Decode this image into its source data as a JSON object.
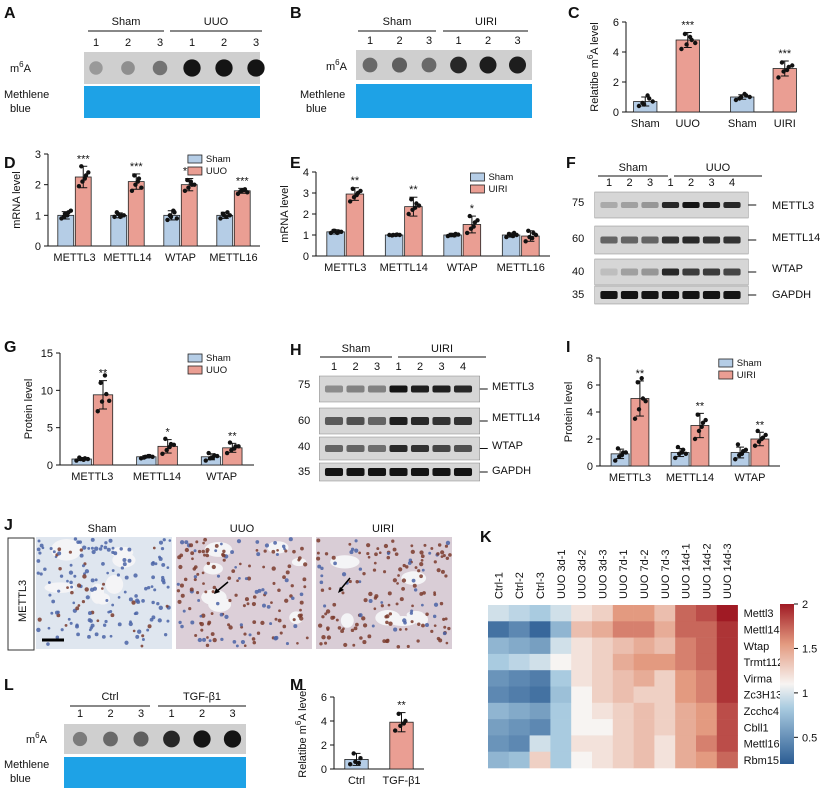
{
  "panels": {
    "A": {
      "label": "A",
      "group_labels": [
        "Sham",
        "UUO"
      ],
      "lane_numbers": [
        "1",
        "2",
        "3",
        "1",
        "2",
        "3"
      ],
      "row_label_m6a": "m",
      "row_label_m6a_sup": "6",
      "row_label_m6a_tail": "A",
      "row_label_mb": [
        "Methlene",
        "blue"
      ],
      "spot_intensity": [
        0.25,
        0.3,
        0.45,
        0.95,
        0.95,
        0.95
      ]
    },
    "B": {
      "label": "B",
      "group_labels": [
        "Sham",
        "UIRI"
      ],
      "lane_numbers": [
        "1",
        "2",
        "3",
        "1",
        "2",
        "3"
      ],
      "row_label_m6a": "m",
      "row_label_m6a_sup": "6",
      "row_label_m6a_tail": "A",
      "row_label_mb": [
        "Methlene",
        "blue"
      ],
      "spot_intensity": [
        0.5,
        0.55,
        0.5,
        0.85,
        0.9,
        0.9
      ]
    },
    "L": {
      "label": "L",
      "group_labels": [
        "Ctrl",
        "TGF-β1"
      ],
      "lane_numbers": [
        "1",
        "2",
        "3",
        "1",
        "2",
        "3"
      ],
      "row_label_m6a": "m",
      "row_label_m6a_sup": "6",
      "row_label_m6a_tail": "A",
      "row_label_mb": [
        "Methlene",
        "blue"
      ],
      "spot_intensity": [
        0.4,
        0.5,
        0.55,
        0.85,
        0.95,
        0.95
      ]
    },
    "F": {
      "label": "F",
      "group_labels": [
        "Sham",
        "UUO"
      ],
      "lane_numbers": [
        "1",
        "2",
        "3",
        "1",
        "2",
        "3",
        "4"
      ],
      "mw_markers": [
        "75",
        "60",
        "40",
        "35"
      ],
      "protein_labels": [
        "METTL3",
        "METTL14",
        "WTAP",
        "GAPDH"
      ]
    },
    "H": {
      "label": "H",
      "group_labels": [
        "Sham",
        "UIRI"
      ],
      "lane_numbers": [
        "1",
        "2",
        "3",
        "1",
        "2",
        "3",
        "4"
      ],
      "mw_markers": [
        "75",
        "60",
        "40",
        "35"
      ],
      "protein_labels": [
        "METTL3",
        "METTL14",
        "WTAP",
        "GAPDH"
      ]
    },
    "J": {
      "label": "J",
      "row_label": "METTL3",
      "image_titles": [
        "Sham",
        "UUO",
        "UIRI"
      ]
    },
    "K": {
      "label": "K",
      "columns": [
        "Ctrl-1",
        "Ctrl-2",
        "Ctrl-3",
        "UUO 3d-1",
        "UUO 3d-2",
        "UUO 3d-3",
        "UUO 7d-1",
        "UUO 7d-2",
        "UUO 7d-3",
        "UUO 14d-1",
        "UUO 14d-2",
        "UUO 14d-3"
      ],
      "rows": [
        "Mettl3",
        "Mettl14",
        "Wtap",
        "Trmt112",
        "Virma",
        "Zc3H13",
        "Zcchc4",
        "Cbll1",
        "Mettl16",
        "Rbm15"
      ],
      "values": [
        [
          0.9,
          0.85,
          0.8,
          0.9,
          1.1,
          1.2,
          1.5,
          1.5,
          1.3,
          1.7,
          1.8,
          2.0
        ],
        [
          0.4,
          0.5,
          0.35,
          0.7,
          1.3,
          1.4,
          1.6,
          1.6,
          1.4,
          1.7,
          1.7,
          1.9
        ],
        [
          0.7,
          0.65,
          0.6,
          0.9,
          1.1,
          1.2,
          1.3,
          1.4,
          1.3,
          1.6,
          1.7,
          1.9
        ],
        [
          0.8,
          0.85,
          0.9,
          1.0,
          1.1,
          1.2,
          1.4,
          1.5,
          1.5,
          1.6,
          1.7,
          1.9
        ],
        [
          0.55,
          0.5,
          0.45,
          0.8,
          1.1,
          1.2,
          1.3,
          1.4,
          1.2,
          1.5,
          1.6,
          1.9
        ],
        [
          0.5,
          0.45,
          0.4,
          0.75,
          1.0,
          1.2,
          1.3,
          1.2,
          1.2,
          1.5,
          1.6,
          1.9
        ],
        [
          0.7,
          0.65,
          0.6,
          0.8,
          1.0,
          1.1,
          1.2,
          1.3,
          1.2,
          1.4,
          1.5,
          1.8
        ],
        [
          0.6,
          0.55,
          0.5,
          0.8,
          1.0,
          1.0,
          1.2,
          1.3,
          1.2,
          1.4,
          1.5,
          1.8
        ],
        [
          0.55,
          0.5,
          0.9,
          0.8,
          1.1,
          1.1,
          1.2,
          1.3,
          1.1,
          1.4,
          1.6,
          1.8
        ],
        [
          0.7,
          0.75,
          1.2,
          0.8,
          1.0,
          1.1,
          1.2,
          1.3,
          1.1,
          1.4,
          1.5,
          1.7
        ]
      ],
      "colorbar_ticks": [
        "2",
        "1.5",
        "1",
        "0.5"
      ]
    }
  },
  "chart_data": [
    {
      "id": "C",
      "type": "bar",
      "panel_label": "C",
      "ylabel_main": "Relatibe m",
      "ylabel_sup": "6",
      "ylabel_tail": "A level",
      "ylim": [
        0,
        6
      ],
      "yticks": [
        "0",
        "2",
        "4",
        "6"
      ],
      "categories": [
        "Sham",
        "UUO",
        "Sham",
        "UIRI"
      ],
      "values": [
        0.7,
        4.8,
        1.0,
        2.9
      ],
      "errors": [
        0.3,
        0.5,
        0.15,
        0.5
      ],
      "colors": [
        "sham",
        "trt",
        "sham",
        "trt"
      ],
      "sig": [
        "",
        "***",
        "",
        "***"
      ],
      "points": [
        [
          0.4,
          0.5,
          0.9,
          0.6,
          1.1,
          0.7
        ],
        [
          4.2,
          4.5,
          4.8,
          5.2,
          5.0,
          4.6
        ],
        [
          0.8,
          1.0,
          1.1,
          0.9,
          1.2,
          1.0
        ],
        [
          2.3,
          2.7,
          3.0,
          3.3,
          2.8,
          3.1
        ]
      ]
    },
    {
      "id": "D",
      "type": "bar",
      "panel_label": "D",
      "ylabel": "mRNA level",
      "ylim": [
        0,
        3
      ],
      "yticks": [
        "0",
        "1",
        "2",
        "3"
      ],
      "categories": [
        "METTL3",
        "METTL14",
        "WTAP",
        "METTL16"
      ],
      "legend": [
        "Sham",
        "UUO"
      ],
      "series": [
        {
          "name": "Sham",
          "values": [
            1.0,
            1.0,
            1.0,
            1.0
          ],
          "errors": [
            0.12,
            0.08,
            0.15,
            0.1
          ]
        },
        {
          "name": "UUO",
          "values": [
            2.25,
            2.1,
            2.0,
            1.8
          ],
          "errors": [
            0.35,
            0.25,
            0.2,
            0.08
          ]
        }
      ],
      "sig": [
        "***",
        "***",
        "***",
        "***"
      ],
      "points": [
        [
          [
            0.9,
            1.05,
            1.1,
            0.95,
            1.0,
            1.15
          ],
          [
            1.95,
            2.1,
            2.3,
            2.6,
            2.2,
            2.4
          ]
        ],
        [
          [
            0.95,
            1.05,
            1.0,
            1.1,
            0.95,
            1.0
          ],
          [
            1.8,
            2.0,
            2.2,
            2.3,
            2.1,
            1.9
          ]
        ],
        [
          [
            0.85,
            0.95,
            1.1,
            1.0,
            1.15,
            0.9
          ],
          [
            1.8,
            1.9,
            2.0,
            2.15,
            2.1,
            2.0
          ]
        ],
        [
          [
            0.9,
            1.0,
            1.1,
            1.05,
            0.95,
            1.0
          ],
          [
            1.7,
            1.8,
            1.85,
            1.78,
            1.82,
            1.75
          ]
        ]
      ]
    },
    {
      "id": "E",
      "type": "bar",
      "panel_label": "E",
      "ylabel": "mRNA level",
      "ylim": [
        0,
        4
      ],
      "yticks": [
        "0",
        "1",
        "2",
        "3",
        "4"
      ],
      "categories": [
        "METTL3",
        "METTL14",
        "WTAP",
        "METTL16"
      ],
      "legend": [
        "Sham",
        "UIRI"
      ],
      "series": [
        {
          "name": "Sham",
          "values": [
            1.15,
            1.0,
            1.0,
            1.0
          ],
          "errors": [
            0.1,
            0.03,
            0.08,
            0.1
          ]
        },
        {
          "name": "UIRI",
          "values": [
            2.95,
            2.35,
            1.5,
            0.95
          ],
          "errors": [
            0.3,
            0.45,
            0.4,
            0.25
          ]
        }
      ],
      "sig": [
        "**",
        "**",
        "*",
        ""
      ],
      "points": [
        [
          [
            1.1,
            1.2,
            1.15,
            1.2,
            1.1,
            1.15
          ],
          [
            2.6,
            2.8,
            3.0,
            3.2,
            2.9,
            3.1
          ]
        ],
        [
          [
            1.0,
            1.0,
            1.02,
            0.98,
            1.0,
            1.0
          ],
          [
            2.0,
            2.2,
            2.5,
            2.7,
            2.3,
            2.4
          ]
        ],
        [
          [
            0.95,
            1.0,
            1.05,
            1.0,
            0.98,
            1.02
          ],
          [
            1.1,
            1.3,
            1.6,
            1.9,
            1.4,
            1.7
          ]
        ],
        [
          [
            0.9,
            1.0,
            1.1,
            1.05,
            0.95,
            1.0
          ],
          [
            0.7,
            0.9,
            1.1,
            1.2,
            0.85,
            1.0
          ]
        ]
      ]
    },
    {
      "id": "G",
      "type": "bar",
      "panel_label": "G",
      "ylabel": "Protein level",
      "ylim": [
        0,
        15
      ],
      "yticks": [
        "0",
        "5",
        "10",
        "15"
      ],
      "categories": [
        "METTL3",
        "METTL14",
        "WTAP"
      ],
      "legend": [
        "Sham",
        "UUO"
      ],
      "series": [
        {
          "name": "Sham",
          "values": [
            0.8,
            1.1,
            1.1
          ],
          "errors": [
            0.2,
            0.15,
            0.4
          ]
        },
        {
          "name": "UUO",
          "values": [
            9.4,
            2.5,
            2.3
          ],
          "errors": [
            1.9,
            0.9,
            0.6
          ]
        }
      ],
      "sig": [
        "**",
        "*",
        "**"
      ],
      "points": [
        [
          [
            0.6,
            0.8,
            0.9,
            1.0,
            0.7,
            0.8
          ],
          [
            7.2,
            8.5,
            9.5,
            11.0,
            12.0,
            8.6
          ]
        ],
        [
          [
            0.9,
            1.1,
            1.2,
            1.0,
            1.2,
            1.1
          ],
          [
            1.5,
            2.0,
            2.8,
            3.5,
            2.4,
            2.7
          ]
        ],
        [
          [
            0.6,
            0.9,
            1.3,
            1.6,
            1.0,
            1.2
          ],
          [
            1.6,
            2.0,
            2.5,
            3.0,
            2.2,
            2.5
          ]
        ]
      ]
    },
    {
      "id": "I",
      "type": "bar",
      "panel_label": "I",
      "ylabel": "Protein level",
      "ylim": [
        0,
        8
      ],
      "yticks": [
        "0",
        "2",
        "4",
        "6",
        "8"
      ],
      "categories": [
        "METTL3",
        "METTL14",
        "WTAP"
      ],
      "legend": [
        "Sham",
        "UIRI"
      ],
      "series": [
        {
          "name": "Sham",
          "values": [
            0.9,
            1.0,
            1.0
          ],
          "errors": [
            0.35,
            0.3,
            0.4
          ]
        },
        {
          "name": "UIRI",
          "values": [
            5.0,
            3.0,
            2.0
          ],
          "errors": [
            1.3,
            0.9,
            0.5
          ]
        }
      ],
      "sig": [
        "**",
        "**",
        "**"
      ],
      "points": [
        [
          [
            0.4,
            0.7,
            1.0,
            1.3,
            0.8,
            1.0
          ],
          [
            3.5,
            4.2,
            5.0,
            6.2,
            6.5,
            4.8
          ]
        ],
        [
          [
            0.6,
            0.9,
            1.2,
            1.4,
            1.0,
            0.9
          ],
          [
            2.0,
            2.6,
            3.2,
            3.8,
            2.9,
            3.4
          ]
        ],
        [
          [
            0.5,
            0.8,
            1.1,
            1.6,
            0.9,
            1.2
          ],
          [
            1.5,
            1.8,
            2.1,
            2.6,
            2.0,
            2.3
          ]
        ]
      ]
    },
    {
      "id": "M",
      "type": "bar",
      "panel_label": "M",
      "ylabel_main": "Relatibe m",
      "ylabel_sup": "6",
      "ylabel_tail": "A level",
      "ylim": [
        0,
        6
      ],
      "yticks": [
        "0",
        "2",
        "4",
        "6"
      ],
      "categories": [
        "Ctrl",
        "TGF-β1"
      ],
      "values": [
        0.8,
        3.9
      ],
      "errors": [
        0.5,
        0.8
      ],
      "colors": [
        "sham",
        "trt"
      ],
      "sig": [
        "",
        "**"
      ],
      "points": [
        [
          0.4,
          0.6,
          0.9,
          1.3,
          0.5
        ],
        [
          3.2,
          3.6,
          4.0,
          4.6,
          3.8
        ]
      ]
    }
  ]
}
